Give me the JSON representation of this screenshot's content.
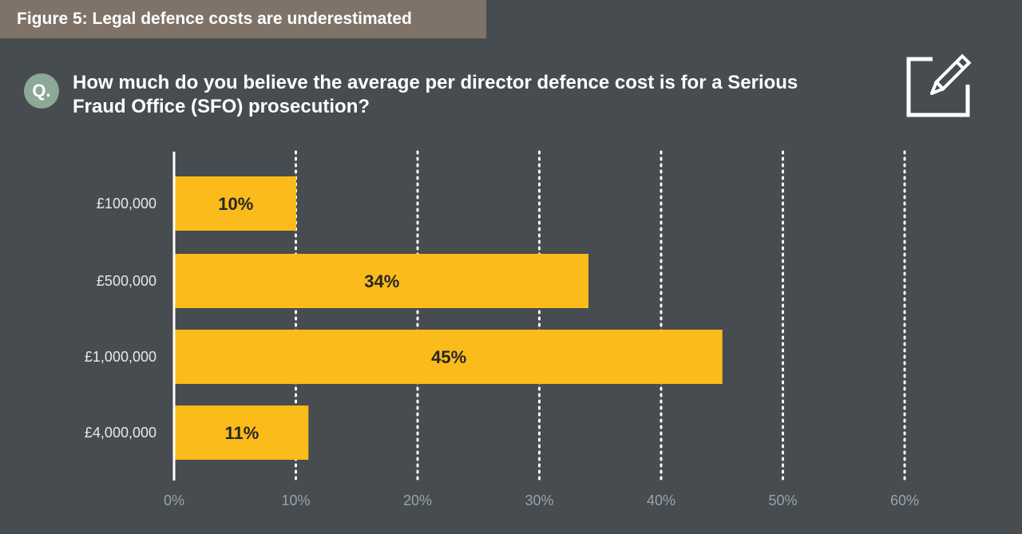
{
  "figure_title": "Figure 5: Legal defence costs are underestimated",
  "question": {
    "badge": "Q.",
    "text": "How much do you believe the average per director defence cost is for a Serious Fraud Office (SFO) prosecution?"
  },
  "colors": {
    "background": "#474c50",
    "header_bg": "#7f7369",
    "badge_bg": "#8ea898",
    "bar": "#fbbb1a"
  },
  "icons": {
    "header_icon": "edit-pencil-icon"
  },
  "chart_data": {
    "type": "bar",
    "orientation": "horizontal",
    "title": "",
    "categories": [
      "£100,000",
      "£500,000",
      "£1,000,000",
      "£4,000,000"
    ],
    "values": [
      10,
      34,
      45,
      11
    ],
    "data_labels": [
      "10%",
      "34%",
      "45%",
      "11%"
    ],
    "xlim": [
      0,
      60
    ],
    "xticks": [
      0,
      10,
      20,
      30,
      40,
      50,
      60
    ],
    "xtick_labels": [
      "0%",
      "10%",
      "20%",
      "30%",
      "40%",
      "50%",
      "60%"
    ],
    "grid": "vertical dotted",
    "xlabel": "",
    "ylabel": ""
  }
}
